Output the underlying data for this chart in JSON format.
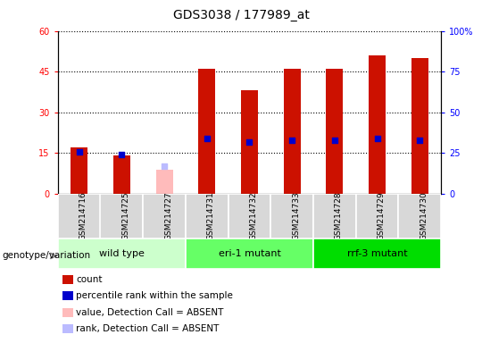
{
  "title": "GDS3038 / 177989_at",
  "samples": [
    "GSM214716",
    "GSM214725",
    "GSM214727",
    "GSM214731",
    "GSM214732",
    "GSM214733",
    "GSM214728",
    "GSM214729",
    "GSM214730"
  ],
  "groups": [
    {
      "label": "wild type",
      "indices": [
        0,
        1,
        2
      ],
      "color": "#ccffcc"
    },
    {
      "label": "eri-1 mutant",
      "indices": [
        3,
        4,
        5
      ],
      "color": "#66ff66"
    },
    {
      "label": "rrf-3 mutant",
      "indices": [
        6,
        7,
        8
      ],
      "color": "#00dd00"
    }
  ],
  "count_values": [
    17,
    14,
    null,
    46,
    38,
    46,
    46,
    51,
    50
  ],
  "count_absent": [
    null,
    null,
    9,
    null,
    null,
    null,
    null,
    null,
    null
  ],
  "percentile_values": [
    26,
    24,
    null,
    34,
    32,
    33,
    33,
    34,
    33
  ],
  "percentile_absent": [
    null,
    null,
    17,
    null,
    null,
    null,
    null,
    null,
    null
  ],
  "ylim_left": [
    0,
    60
  ],
  "ylim_right": [
    0,
    100
  ],
  "yticks_left": [
    0,
    15,
    30,
    45,
    60
  ],
  "yticks_right": [
    0,
    25,
    50,
    75,
    100
  ],
  "yticklabels_right": [
    "0",
    "25",
    "50",
    "75",
    "100%"
  ],
  "yticklabels_left": [
    "0",
    "15",
    "30",
    "45",
    "60"
  ],
  "color_count": "#cc1100",
  "color_count_absent": "#ffbbbb",
  "color_percentile": "#0000cc",
  "color_percentile_absent": "#bbbbff",
  "bar_width": 0.4,
  "legend_items": [
    {
      "color": "#cc1100",
      "label": "count"
    },
    {
      "color": "#0000cc",
      "label": "percentile rank within the sample"
    },
    {
      "color": "#ffbbbb",
      "label": "value, Detection Call = ABSENT"
    },
    {
      "color": "#bbbbff",
      "label": "rank, Detection Call = ABSENT"
    }
  ]
}
